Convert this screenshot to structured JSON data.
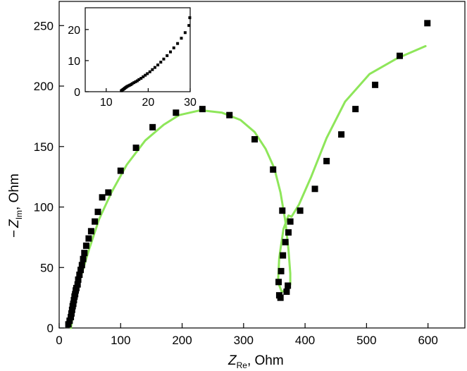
{
  "chart_data": [
    {
      "type": "scatter",
      "role": "main",
      "xlabel": {
        "symbol": "Z",
        "sub": "Re",
        "unit": ", Ohm"
      },
      "ylabel": {
        "prefix": "−",
        "symbol": "Z",
        "sub": "Im",
        "unit": ", Ohm"
      },
      "xlim": [
        0,
        660
      ],
      "ylim": [
        0,
        270
      ],
      "xticks": [
        "0",
        "100",
        "200",
        "300",
        "400",
        "500",
        "600"
      ],
      "yticks": [
        "0",
        "50",
        "100",
        "150",
        "200",
        "250"
      ],
      "grid": false,
      "legend": "none",
      "series": [
        {
          "kind": "markers",
          "marker": "square",
          "color": "#000000",
          "points": [
            [
              15,
              3
            ],
            [
              17,
              6
            ],
            [
              19,
              9
            ],
            [
              20,
              12
            ],
            [
              21,
              15
            ],
            [
              22,
              18
            ],
            [
              23,
              20
            ],
            [
              24,
              23
            ],
            [
              25,
              26
            ],
            [
              26,
              28
            ],
            [
              27,
              31
            ],
            [
              28,
              33
            ],
            [
              30,
              36
            ],
            [
              31,
              40
            ],
            [
              33,
              44
            ],
            [
              35,
              48
            ],
            [
              37,
              52
            ],
            [
              39,
              57
            ],
            [
              41,
              62
            ],
            [
              44,
              68
            ],
            [
              48,
              74
            ],
            [
              52,
              80
            ],
            [
              58,
              88
            ],
            [
              63,
              96
            ],
            [
              70,
              108
            ],
            [
              80,
              112
            ],
            [
              100,
              130
            ],
            [
              125,
              149
            ],
            [
              152,
              166
            ],
            [
              190,
              178
            ],
            [
              233,
              181
            ],
            [
              277,
              176
            ],
            [
              318,
              156
            ],
            [
              348,
              131
            ],
            [
              357,
              38
            ],
            [
              358,
              27
            ],
            [
              360,
              25
            ],
            [
              361,
              47
            ],
            [
              363,
              97
            ],
            [
              364,
              60
            ],
            [
              368,
              71
            ],
            [
              370,
              30
            ],
            [
              372,
              35
            ],
            [
              373,
              79
            ],
            [
              376,
              88
            ],
            [
              392,
              97
            ],
            [
              416,
              115
            ],
            [
              435,
              138
            ],
            [
              459,
              160
            ],
            [
              482,
              181
            ],
            [
              514,
              201
            ],
            [
              554,
              225
            ],
            [
              599,
              252
            ]
          ]
        },
        {
          "kind": "fit-line",
          "color": "#8ee65a",
          "points": [
            [
              19,
              0
            ],
            [
              22,
              10
            ],
            [
              27,
              25
            ],
            [
              35,
              42
            ],
            [
              48,
              64
            ],
            [
              65,
              90
            ],
            [
              85,
              112
            ],
            [
              110,
              135
            ],
            [
              140,
              155
            ],
            [
              170,
              168
            ],
            [
              195,
              176
            ],
            [
              230,
              180
            ],
            [
              265,
              178
            ],
            [
              295,
              172
            ],
            [
              318,
              162
            ],
            [
              336,
              148
            ],
            [
              350,
              132
            ],
            [
              360,
              112
            ],
            [
              368,
              88
            ],
            [
              373,
              65
            ],
            [
              376,
              45
            ],
            [
              376,
              36
            ],
            [
              370,
              31
            ],
            [
              362,
              30
            ],
            [
              356,
              38
            ],
            [
              358,
              58
            ],
            [
              365,
              82
            ],
            [
              373,
              93
            ],
            [
              378,
              92
            ],
            [
              390,
              102
            ],
            [
              410,
              125
            ],
            [
              435,
              157
            ],
            [
              465,
              187
            ],
            [
              505,
              210
            ],
            [
              550,
              223
            ],
            [
              596,
              233
            ]
          ]
        }
      ]
    },
    {
      "type": "scatter",
      "role": "inset",
      "xlim": [
        5,
        30
      ],
      "ylim": [
        0,
        27
      ],
      "xticks": [
        "10",
        "20",
        "30"
      ],
      "yticks": [
        "0",
        "10",
        "20"
      ],
      "grid": false,
      "series": [
        {
          "kind": "markers",
          "marker": "square",
          "color": "#000000",
          "points": [
            [
              13.6,
              0.3
            ],
            [
              13.8,
              0.5
            ],
            [
              14.0,
              0.7
            ],
            [
              14.2,
              0.9
            ],
            [
              14.4,
              1.1
            ],
            [
              14.6,
              1.3
            ],
            [
              14.8,
              1.5
            ],
            [
              15.0,
              1.7
            ],
            [
              15.3,
              1.9
            ],
            [
              15.6,
              2.1
            ],
            [
              15.9,
              2.3
            ],
            [
              16.2,
              2.6
            ],
            [
              16.6,
              2.9
            ],
            [
              17.0,
              3.2
            ],
            [
              17.4,
              3.5
            ],
            [
              17.8,
              3.9
            ],
            [
              18.3,
              4.3
            ],
            [
              18.8,
              4.8
            ],
            [
              19.3,
              5.3
            ],
            [
              19.8,
              5.8
            ],
            [
              20.4,
              6.4
            ],
            [
              21.0,
              7.1
            ],
            [
              21.6,
              7.8
            ],
            [
              22.3,
              8.6
            ],
            [
              23.0,
              9.5
            ],
            [
              23.7,
              10.5
            ],
            [
              24.5,
              11.6
            ],
            [
              25.3,
              12.8
            ],
            [
              26.1,
              14.1
            ],
            [
              27.0,
              15.5
            ],
            [
              27.9,
              17.2
            ],
            [
              28.8,
              19.0
            ],
            [
              29.7,
              21.3
            ],
            [
              29.9,
              23.8
            ]
          ]
        }
      ]
    }
  ]
}
